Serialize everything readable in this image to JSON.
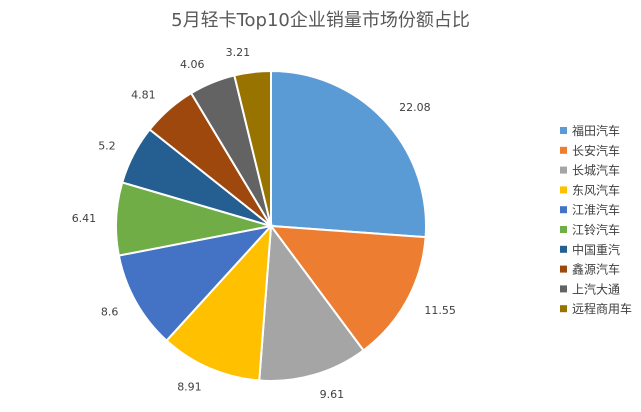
{
  "chart_data": {
    "type": "pie",
    "title": "5月轻卡Top10企业销量市场份额占比",
    "categories": [
      "福田汽车",
      "长安汽车",
      "长城汽车",
      "东风汽车",
      "江淮汽车",
      "江铃汽车",
      "中国重汽",
      "鑫源汽车",
      "上汽大通",
      "远程商用车"
    ],
    "values": [
      22.08,
      11.55,
      9.61,
      8.91,
      8.6,
      6.41,
      5.2,
      4.81,
      4.06,
      3.21
    ],
    "value_labels": [
      "22.08",
      "11.55",
      "9.61",
      "8.91",
      "8.6",
      "6.41",
      "5.2",
      "4.81",
      "4.06",
      "3.21"
    ],
    "colors": [
      "#5B9BD5",
      "#ED7D31",
      "#A5A5A5",
      "#FFC000",
      "#4472C4",
      "#70AD47",
      "#255E91",
      "#9E480E",
      "#636363",
      "#997300"
    ],
    "legend_position": "right",
    "start_angle": "top, clockwise"
  }
}
